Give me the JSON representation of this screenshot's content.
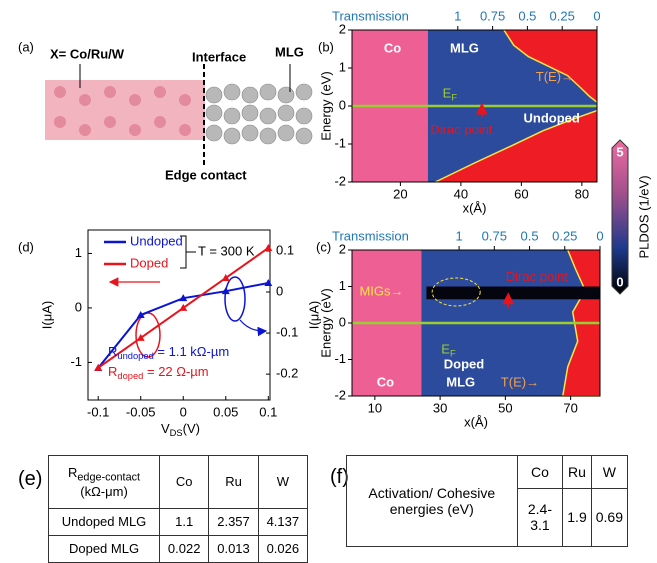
{
  "panel_a": {
    "label": "(a)",
    "element": "X= Co/Ru/W",
    "interface": "Interface",
    "graphene": "MLG",
    "contact": "Edge contact"
  },
  "chart_data": [
    {
      "type": "heatmap",
      "label": "(b)",
      "top_axis_label": "Transmission",
      "x2lim": [
        1.76,
        0
      ],
      "x2ticks": [
        1,
        0.75,
        0.5,
        0.25,
        0
      ],
      "xlabel": "x(Å)",
      "ylabel": "Energy (eV)",
      "xlim": [
        4,
        85
      ],
      "xticks": [
        20,
        40,
        60,
        80
      ],
      "ylim": [
        -2,
        2
      ],
      "yticks": [
        -2,
        -1,
        0,
        1,
        2
      ],
      "annotations": {
        "metal": "Co",
        "graphene": "MLG",
        "fermi": {
          "main": "E",
          "sub": "F"
        },
        "transmission": "T(E)→",
        "dirac": "Dirac point",
        "doping": "Undoped"
      }
    },
    {
      "type": "heatmap",
      "label": "(c)",
      "top_axis_label": "Transmission",
      "x2lim": [
        1.76,
        0
      ],
      "x2ticks": [
        1,
        0.75,
        0.5,
        0.25,
        0
      ],
      "xlabel": "x(Å)",
      "ylabel": "Energy (eV)",
      "xlim": [
        3,
        79
      ],
      "xticks": [
        10,
        30,
        50,
        70
      ],
      "ylim": [
        -2,
        2
      ],
      "yticks": [
        -2,
        -1,
        0,
        1,
        2
      ],
      "annotations": {
        "migs": "MIGs→",
        "dirac": "Dirac point",
        "fermi": {
          "main": "E",
          "sub": "F"
        },
        "doping": "Doped",
        "metal": "Co",
        "graphene": "MLG",
        "transmission": "T(E)→"
      }
    },
    {
      "type": "line",
      "label": "(d)",
      "xlabel": {
        "main": "V",
        "sub": "DS",
        "rest": "(V)"
      },
      "ylabel": "I(μA)",
      "y2label": "I(μA)",
      "x": [
        -0.1,
        -0.05,
        0,
        0.05,
        0.1
      ],
      "xlim": [
        -0.112,
        0.102
      ],
      "xticks": [
        -0.1,
        -0.05,
        0,
        0.05,
        0.1
      ],
      "ylim": [
        -1.69,
        1.43
      ],
      "yticks": [
        -1,
        0,
        1
      ],
      "y2lim": [
        -0.263,
        0.151
      ],
      "y2ticks": [
        -0.2,
        -0.1,
        0,
        0.1
      ],
      "series": [
        {
          "name": "Undoped",
          "color": "#0a14d2",
          "axis": "y2",
          "values": [
            -0.185,
            -0.056,
            -0.015,
            0.002,
            0.022
          ]
        },
        {
          "name": "Doped",
          "color": "#e8141b",
          "values": [
            -1.1,
            -0.55,
            0,
            0.55,
            1.1
          ]
        }
      ],
      "annotations": {
        "temperature": "T = 300 K",
        "r_undoped": {
          "main": "R",
          "sub": "undoped",
          "rest": " = 1.1 kΩ-µm"
        },
        "r_doped": {
          "main": "R",
          "sub": "doped",
          "rest": " = 22 Ω-µm"
        }
      }
    }
  ],
  "colorbar": {
    "label": "PLDOS (1/eV)",
    "ylim": [
      -0.12,
      5.19
    ],
    "yticks": [
      0,
      5
    ]
  },
  "table_e": {
    "label": "(e)",
    "header": [
      {
        "main": "R",
        "sub": "edge-contact",
        "rest": "(kΩ-μm)"
      },
      "Co",
      "Ru",
      "W"
    ],
    "rows": [
      [
        "Undoped MLG",
        "1.1",
        "2.357",
        "4.137"
      ],
      [
        "Doped MLG",
        "0.022",
        "0.013",
        "0.026"
      ]
    ]
  },
  "table_f": {
    "label": "(f)",
    "row_header": "Activation/ Cohesive energies (eV)",
    "header": [
      "Co",
      "Ru",
      "W"
    ],
    "values": [
      "2.4-3.1",
      "1.9",
      "0.69"
    ]
  }
}
